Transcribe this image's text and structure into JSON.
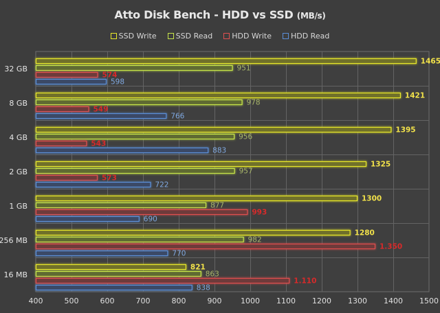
{
  "chart_data": {
    "type": "bar",
    "orientation": "horizontal",
    "title": "Atto Disk Bench - HDD vs SSD",
    "title_unit": "(MB/s)",
    "xlabel": "",
    "ylabel": "",
    "xlim": [
      400,
      1500
    ],
    "x_ticks": [
      400,
      500,
      600,
      700,
      800,
      900,
      1000,
      1100,
      1200,
      1300,
      1400,
      1500
    ],
    "x_tick_labels": [
      "400",
      "500",
      "600",
      "700",
      "800",
      "900",
      "1000",
      "1100",
      "1200",
      "1300",
      "1400",
      "1500"
    ],
    "grid": true,
    "legend_position": "top-center",
    "categories": [
      "32 GB",
      "8 GB",
      "4 GB",
      "2 GB",
      "1 GB",
      "256 MB",
      "16 MB"
    ],
    "series": [
      {
        "name": "SSD Write",
        "color": "#e8e82a",
        "fill": "#6f6f2a",
        "label_color": "#f2e24a",
        "values": [
          1465,
          1421,
          1395,
          1325,
          1300,
          1280,
          821
        ],
        "labels": [
          "1465",
          "1421",
          "1395",
          "1325",
          "1300",
          "1280",
          "821"
        ]
      },
      {
        "name": "SSD Read",
        "color": "#c8e64a",
        "fill": "#5e6b33",
        "label_color": "#a9b76a",
        "values": [
          951,
          978,
          956,
          957,
          877,
          982,
          863
        ],
        "labels": [
          "951",
          "978",
          "956",
          "957",
          "877",
          "982",
          "863"
        ]
      },
      {
        "name": "HDD Write",
        "color": "#e05050",
        "fill": "#6e3a3a",
        "label_color": "#d82a2a",
        "values": [
          574,
          549,
          543,
          573,
          993,
          1350,
          1110
        ],
        "labels": [
          "574",
          "549",
          "543",
          "573",
          "993",
          "1.350",
          "1.110"
        ]
      },
      {
        "name": "HDD Read",
        "color": "#5b8fd8",
        "fill": "#3a4a66",
        "label_color": "#7fa8e0",
        "values": [
          598,
          766,
          883,
          722,
          690,
          770,
          838
        ],
        "labels": [
          "598",
          "766",
          "883",
          "722",
          "690",
          "770",
          "838"
        ]
      }
    ]
  }
}
